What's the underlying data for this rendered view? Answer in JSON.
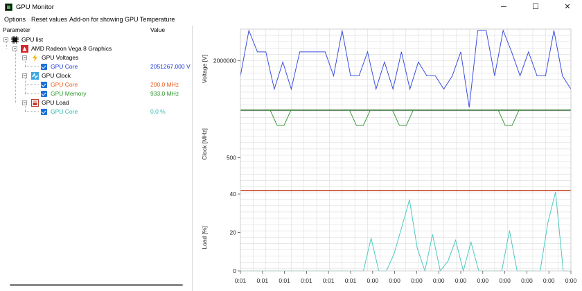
{
  "window": {
    "title": "GPU Monitor",
    "minimize_glyph": "─",
    "maximize_glyph": "☐",
    "close_glyph": "✕"
  },
  "menu": {
    "options": "Options",
    "reset": "Reset values",
    "addon": "Add-on for showing GPU Temperature"
  },
  "tree": {
    "headers": {
      "parameter": "Parameter",
      "value": "Value"
    },
    "root": "GPU list",
    "gpu_name": "AMD Radeon Vega 8 Graphics",
    "voltages": {
      "label": "GPU Voltages",
      "items": [
        {
          "label": "GPU Core",
          "value": "2051267,000 V",
          "color": "#1f3fd8"
        }
      ]
    },
    "clock": {
      "label": "GPU Clock",
      "items": [
        {
          "label": "GPU Core",
          "value": "200,0 MHz",
          "color": "#e85a1a"
        },
        {
          "label": "GPU Memory",
          "value": "933,0 MHz",
          "color": "#2e9a2e"
        }
      ]
    },
    "load": {
      "label": "GPU Load",
      "items": [
        {
          "label": "GPU Core",
          "value": "0,0 %",
          "color": "#2fb8b0"
        }
      ]
    }
  },
  "colors": {
    "voltage_line": "#3a4ee0",
    "clock_core_line": "#c0391b",
    "clock_memory_line": "#3f9a3f",
    "clock_memory_dark": "#2d6a2d",
    "load_line": "#4cc9c0",
    "grid": "#dcdcdc",
    "checkbox": "#1a6fd8"
  },
  "chart_data": [
    {
      "type": "line",
      "ylabel": "Voltage [V]",
      "yticks": [
        "2000000"
      ],
      "series": [
        {
          "values": [
            1760000,
            2480000,
            2140000,
            2140000,
            1550000,
            1980000,
            1550000,
            2140000,
            2140000,
            2140000,
            2140000,
            1760000,
            2480000,
            1760000,
            1760000,
            2140000,
            1550000,
            1980000,
            1550000,
            2140000,
            1550000,
            1980000,
            1760000,
            1760000,
            1550000,
            1760000,
            2140000,
            1260000,
            2480000,
            2480000,
            1760000,
            2480000,
            2140000,
            1760000,
            2140000,
            1760000,
            1760000,
            2480000,
            1760000,
            1550000
          ]
        }
      ]
    },
    {
      "type": "line",
      "ylabel": "Clock [MHz]",
      "yticks": [
        "500"
      ],
      "series": [
        {
          "values": [
            933,
            933,
            933,
            933,
            933,
            933,
            933,
            933,
            933,
            933,
            933,
            933,
            933,
            933,
            933,
            933,
            933,
            933,
            933,
            933,
            933,
            933,
            933,
            933,
            933,
            933,
            933,
            933,
            933,
            933,
            933,
            933,
            933,
            933,
            933,
            933,
            933,
            933,
            933,
            933
          ]
        },
        {
          "values": [
            200,
            200,
            200,
            200,
            200,
            200,
            200,
            200,
            200,
            200,
            200,
            200,
            200,
            200,
            200,
            200,
            200,
            200,
            200,
            200,
            200,
            200,
            200,
            200,
            200,
            200,
            200,
            200,
            200,
            200,
            200,
            200,
            200,
            200,
            200,
            200,
            200,
            200,
            200,
            200
          ]
        }
      ]
    },
    {
      "type": "line",
      "ylabel": "Load [%]",
      "yticks": [
        "0",
        "20",
        "40"
      ],
      "xticks": [
        "0:01",
        "0:01",
        "0:01",
        "0:01",
        "0:01",
        "0:01",
        "0:00",
        "0:00",
        "0:00",
        "0:00",
        "0:00",
        "0:00",
        "0:00",
        "0:00",
        "0:00",
        "0:00"
      ],
      "series": [
        {
          "values": [
            0,
            0,
            0,
            0,
            0,
            0,
            0,
            0,
            0,
            0,
            0,
            0,
            0,
            0,
            0,
            0,
            0,
            17,
            0,
            0,
            9,
            23,
            37,
            12,
            0,
            19,
            0,
            5,
            16,
            0,
            15,
            0,
            0,
            0,
            0,
            21,
            0,
            0,
            0,
            0,
            25,
            41,
            0,
            0
          ]
        }
      ]
    }
  ]
}
